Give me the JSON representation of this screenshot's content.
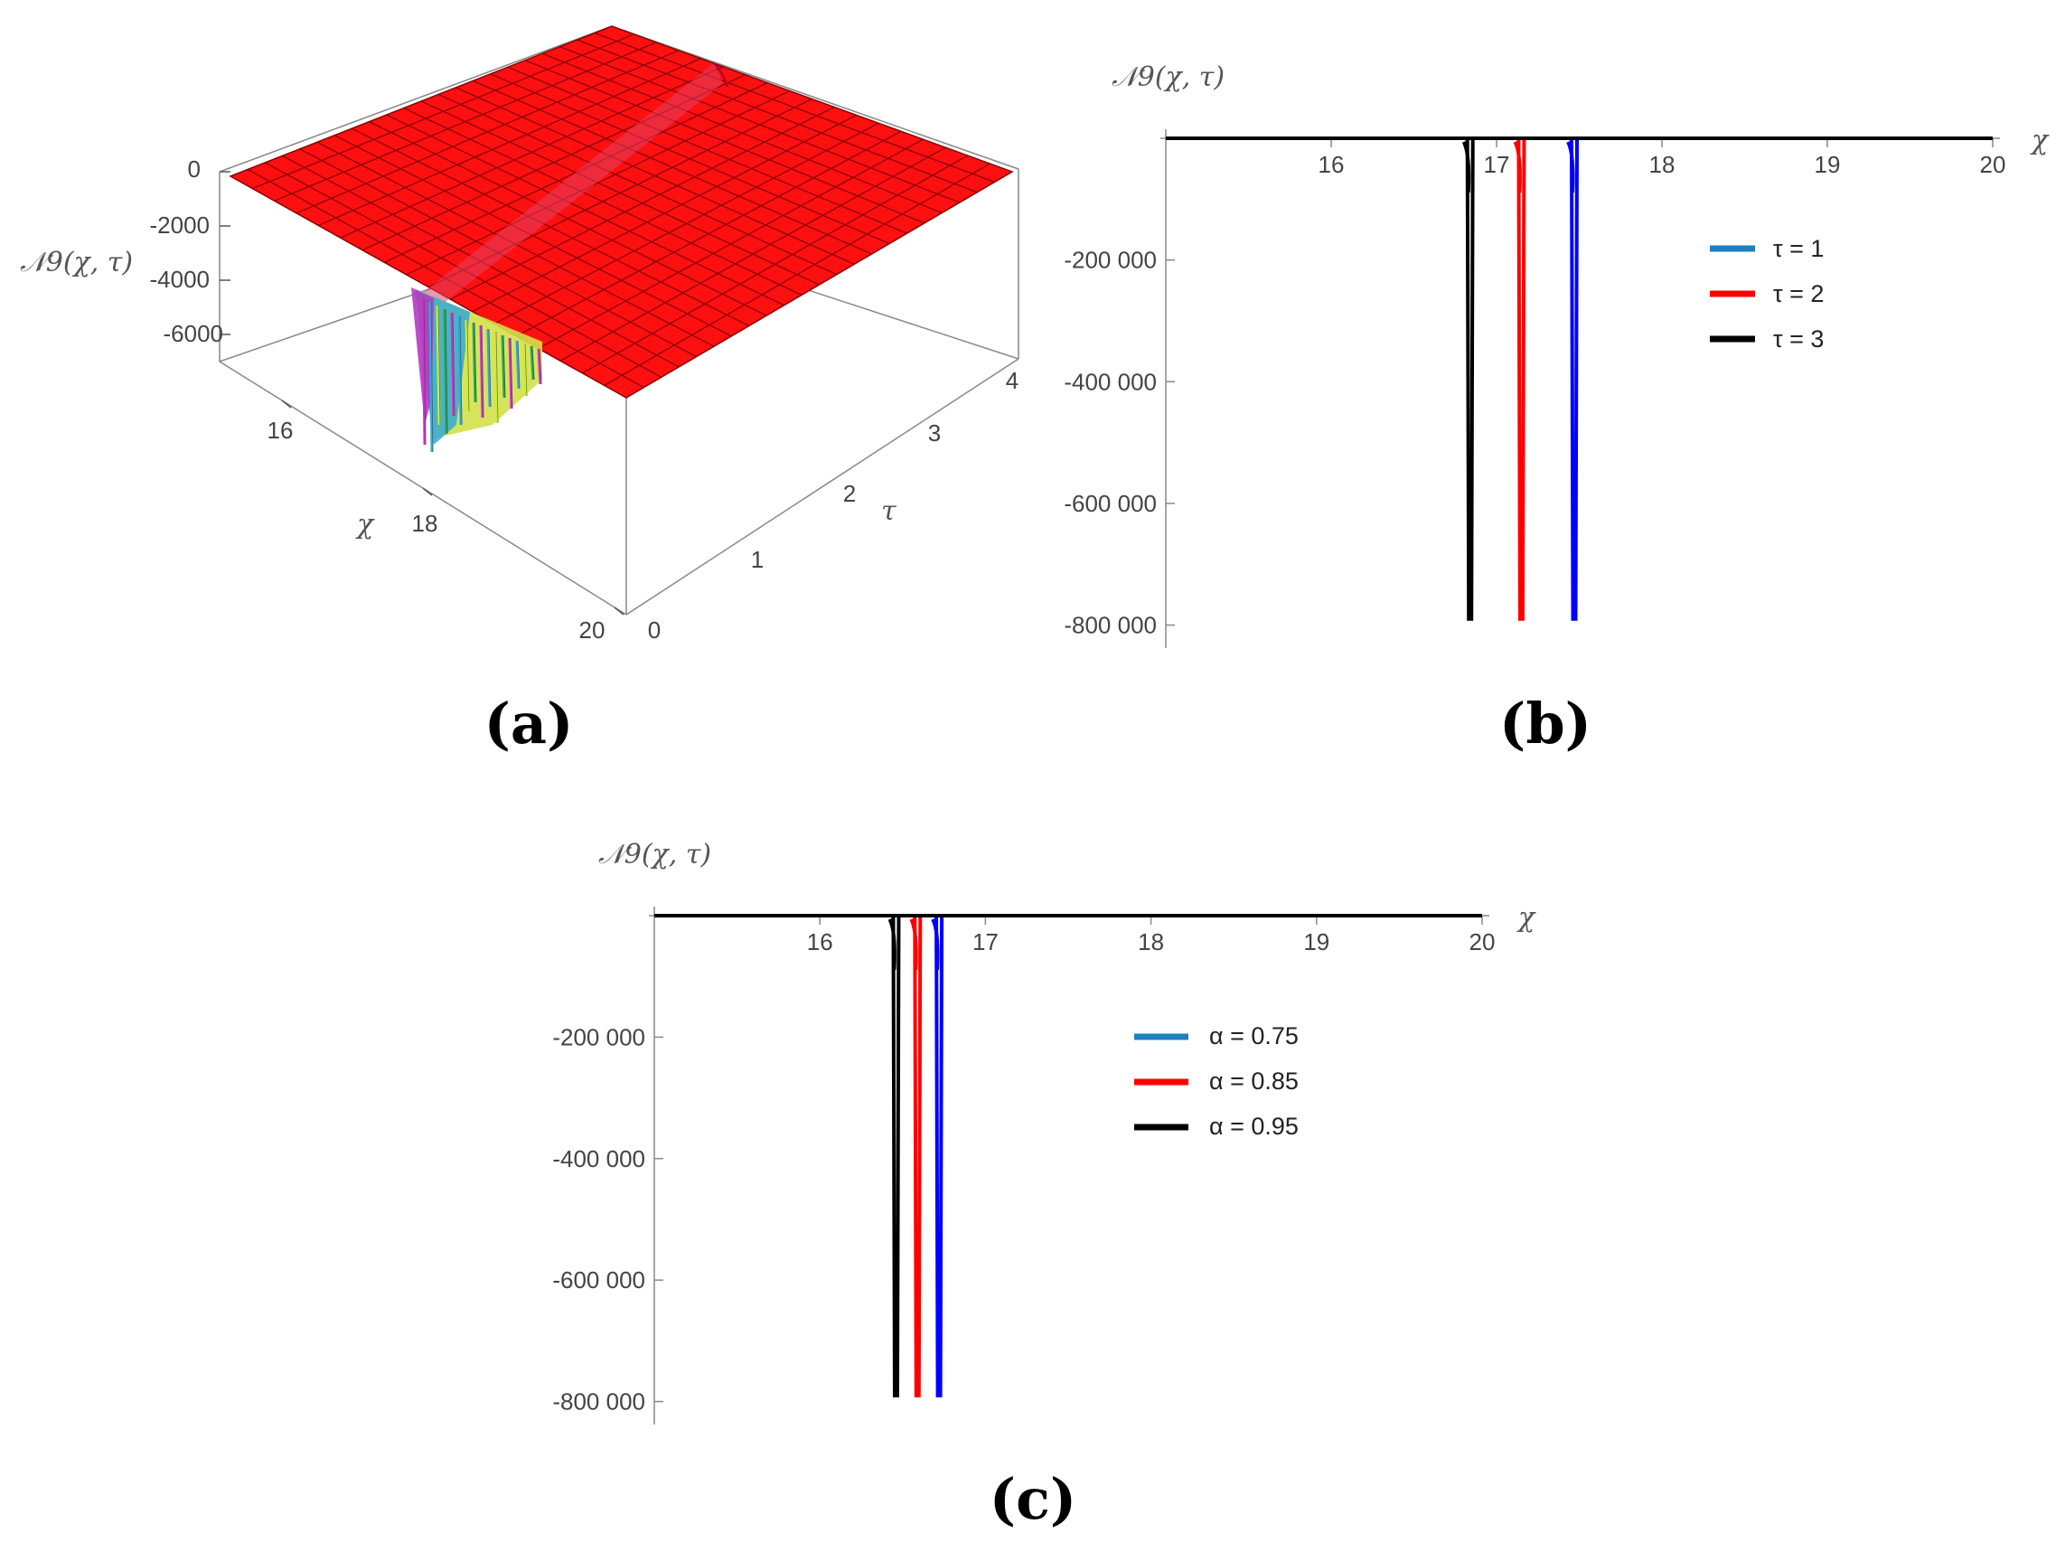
{
  "chart_data": [
    {
      "panel": "(a)",
      "type": "surface3d",
      "zlabel": "𝒩9(χ, τ)",
      "xlabel": "χ",
      "ylabel": "τ",
      "x_ticks": [
        "16",
        "18",
        "20"
      ],
      "y_ticks": [
        "0",
        "1",
        "2",
        "3",
        "4"
      ],
      "z_ticks": [
        "0",
        "-2000",
        "-4000",
        "-6000"
      ],
      "xlim": [
        15,
        20
      ],
      "ylim": [
        0,
        4
      ],
      "zlim": [
        -7500,
        0
      ],
      "surface_color": "#ff0000",
      "trough_colors": [
        "#cc33cc",
        "#33aadd",
        "#ccee33",
        "#22aa55"
      ]
    },
    {
      "panel": "(b)",
      "type": "line",
      "ylabel": "𝒩9(χ, τ)",
      "xlabel": "χ",
      "x_ticks": [
        "16",
        "17",
        "18",
        "19",
        "20"
      ],
      "y_ticks": [
        "-200 000",
        "-400 000",
        "-600 000",
        "-800 000"
      ],
      "xlim": [
        15,
        20
      ],
      "ylim": [
        -820000,
        0
      ],
      "series": [
        {
          "name": "τ = 1",
          "legend_color": "#1f7fbf",
          "color": "#0000ff",
          "spike_x": 17.47,
          "min_y": -790000
        },
        {
          "name": "τ = 2",
          "legend_color": "#ff0000",
          "color": "#ff0000",
          "spike_x": 17.15,
          "min_y": -790000
        },
        {
          "name": "τ = 3",
          "legend_color": "#000000",
          "color": "#000000",
          "spike_x": 16.84,
          "min_y": -790000
        }
      ]
    },
    {
      "panel": "(c)",
      "type": "line",
      "ylabel": "𝒩9(χ, τ)",
      "xlabel": "χ",
      "x_ticks": [
        "16",
        "17",
        "18",
        "19",
        "20"
      ],
      "y_ticks": [
        "-200 000",
        "-400 000",
        "-600 000",
        "-800 000"
      ],
      "xlim": [
        15,
        20
      ],
      "ylim": [
        -820000,
        0
      ],
      "series": [
        {
          "name": "α = 0.75",
          "legend_color": "#1f7fbf",
          "color": "#0000ff",
          "spike_x": 16.72,
          "min_y": -790000
        },
        {
          "name": "α = 0.85",
          "legend_color": "#ff0000",
          "color": "#ff0000",
          "spike_x": 16.59,
          "min_y": -790000
        },
        {
          "name": "α = 0.95",
          "legend_color": "#000000",
          "color": "#000000",
          "spike_x": 16.46,
          "min_y": -790000
        }
      ]
    }
  ]
}
